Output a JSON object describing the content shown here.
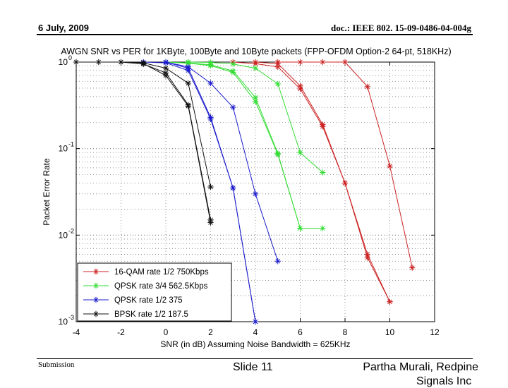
{
  "header": {
    "date": "6 July, 2009",
    "doc_id": "doc.: IEEE 802. 15-09-0486-04-004g"
  },
  "footer": {
    "submission": "Submission",
    "slide": "Slide 11",
    "author": "Partha Murali, Redpine",
    "author_cont": "Signals Inc"
  },
  "chart_data": {
    "type": "line",
    "title": "AWGN SNR vs PER for 1KByte, 100Byte and 10Byte packets (FPP-OFDM Option-2 64-pt, 518KHz)",
    "xlabel": "SNR (in dB) Assuming Noise Bandwidth = 625KHz",
    "ylabel": "Packet Error Rate",
    "xlim": [
      -4,
      12
    ],
    "ylim": [
      0.001,
      1
    ],
    "yscale": "log",
    "grid": true,
    "legend_position": "bottom-left",
    "x_ticks": [
      "-4",
      "-2",
      "0",
      "2",
      "4",
      "6",
      "8",
      "10",
      "12"
    ],
    "y_ticks": [
      {
        "value": 1,
        "base": "10",
        "exp": "0"
      },
      {
        "value": 0.1,
        "base": "10",
        "exp": "-1"
      },
      {
        "value": 0.01,
        "base": "10",
        "exp": "-2"
      },
      {
        "value": 0.001,
        "base": "10",
        "exp": "-3"
      }
    ],
    "series": [
      {
        "name": "16-QAM rate 1/2 750Kbps",
        "color": "#cc2222",
        "curves": [
          [
            [
              5,
              1
            ],
            [
              6,
              1
            ],
            [
              7,
              1
            ],
            [
              8,
              1
            ],
            [
              9,
              0.52
            ],
            [
              10,
              0.063
            ],
            [
              11,
              0.0042
            ]
          ],
          [
            [
              4,
              1
            ],
            [
              5,
              0.96
            ],
            [
              6,
              0.53
            ],
            [
              7,
              0.19
            ],
            [
              8,
              0.04
            ],
            [
              9,
              0.006
            ],
            [
              10,
              0.0017
            ]
          ],
          [
            [
              3,
              1
            ],
            [
              4,
              0.96
            ],
            [
              5,
              0.88
            ],
            [
              6,
              0.49
            ],
            [
              7,
              0.18
            ],
            [
              8,
              0.04
            ],
            [
              9,
              0.0055
            ],
            [
              10,
              0.0017
            ]
          ]
        ]
      },
      {
        "name": "QPSK rate 3/4 562.5Kbps",
        "color": "#33dd33",
        "curves": [
          [
            [
              1,
              1
            ],
            [
              2,
              0.99
            ],
            [
              3,
              0.95
            ],
            [
              4,
              0.85
            ],
            [
              5,
              0.56
            ],
            [
              6,
              0.09
            ],
            [
              7,
              0.053
            ]
          ],
          [
            [
              0,
              1
            ],
            [
              1,
              0.98
            ],
            [
              2,
              0.93
            ],
            [
              3,
              0.79
            ],
            [
              4,
              0.39
            ],
            [
              5,
              0.088
            ],
            [
              6,
              0.012
            ],
            [
              7,
              0.012
            ]
          ],
          [
            [
              0,
              1
            ],
            [
              1,
              0.97
            ],
            [
              2,
              0.91
            ],
            [
              3,
              0.76
            ],
            [
              4,
              0.35
            ],
            [
              5,
              0.086
            ],
            [
              6,
              0.012
            ]
          ]
        ]
      },
      {
        "name": "QPSK rate 1/2 375",
        "color": "#1c1ccc",
        "curves": [
          [
            [
              0,
              1
            ],
            [
              1,
              0.88
            ],
            [
              2,
              0.57
            ],
            [
              3,
              0.3
            ],
            [
              4,
              0.03
            ],
            [
              5,
              0.005
            ]
          ],
          [
            [
              0,
              1
            ],
            [
              1,
              0.85
            ],
            [
              2,
              0.23
            ],
            [
              3,
              0.035
            ],
            [
              4,
              0.001
            ]
          ],
          [
            [
              -1,
              1
            ],
            [
              0,
              0.98
            ],
            [
              1,
              0.8
            ],
            [
              2,
              0.22
            ],
            [
              3,
              0.035
            ],
            [
              4,
              0.001
            ]
          ]
        ]
      },
      {
        "name": "BPSK rate 1/2 187.5",
        "color": "#111111",
        "curves": [
          [
            [
              -4,
              1
            ],
            [
              -3,
              1
            ],
            [
              -2,
              1
            ],
            [
              -1,
              0.98
            ],
            [
              0,
              0.85
            ],
            [
              1,
              0.57
            ],
            [
              2,
              0.036
            ]
          ],
          [
            [
              -2,
              1
            ],
            [
              -1,
              0.95
            ],
            [
              0,
              0.75
            ],
            [
              1,
              0.32
            ],
            [
              2,
              0.015
            ]
          ],
          [
            [
              -1,
              0.96
            ],
            [
              0,
              0.7
            ],
            [
              1,
              0.31
            ],
            [
              2,
              0.014
            ]
          ]
        ]
      }
    ]
  }
}
